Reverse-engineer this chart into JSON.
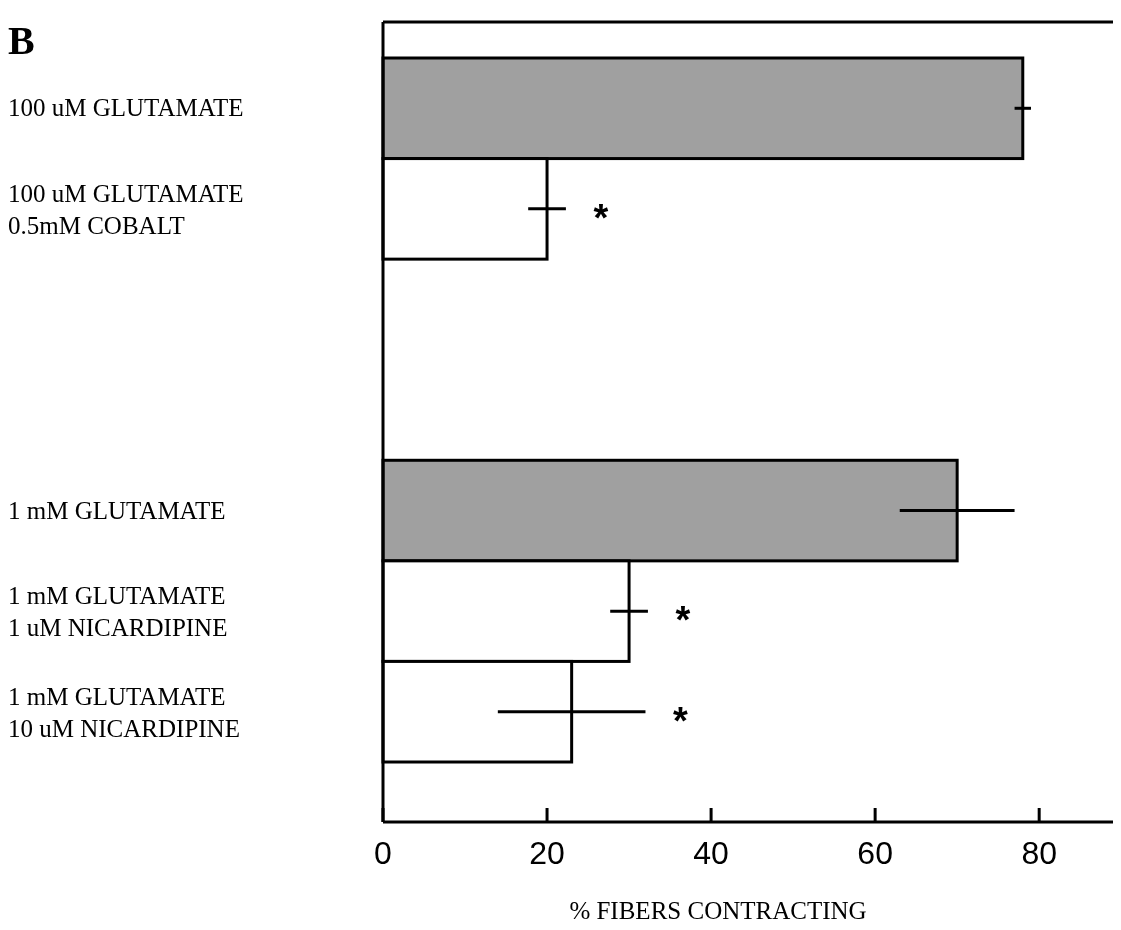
{
  "chart_data": {
    "type": "bar",
    "orientation": "horizontal",
    "xlabel": "% FIBERS CONTRACTING",
    "categories": [
      "100 uM GLUTAMATE",
      "100 uM GLUTAMATE\n0.5mM COBALT",
      null,
      null,
      "1 mM GLUTAMATE",
      "1 mM GLUTAMATE\n1 uM NICARDIPINE",
      "1 mM GLUTAMATE\n10 uM NICARDIPINE"
    ],
    "values": [
      78,
      20,
      null,
      null,
      70,
      30,
      23
    ],
    "errors": [
      1,
      2.3,
      null,
      null,
      7,
      2.3,
      9
    ],
    "colors": [
      "#a0a0a0",
      "#ffffff",
      null,
      null,
      "#a0a0a0",
      "#ffffff",
      "#ffffff"
    ],
    "xlim": [
      0,
      89
    ],
    "xticks": [
      0,
      20,
      40,
      60,
      80
    ],
    "grid": false,
    "annotations": [
      "B",
      "*",
      "*",
      "*"
    ]
  }
}
